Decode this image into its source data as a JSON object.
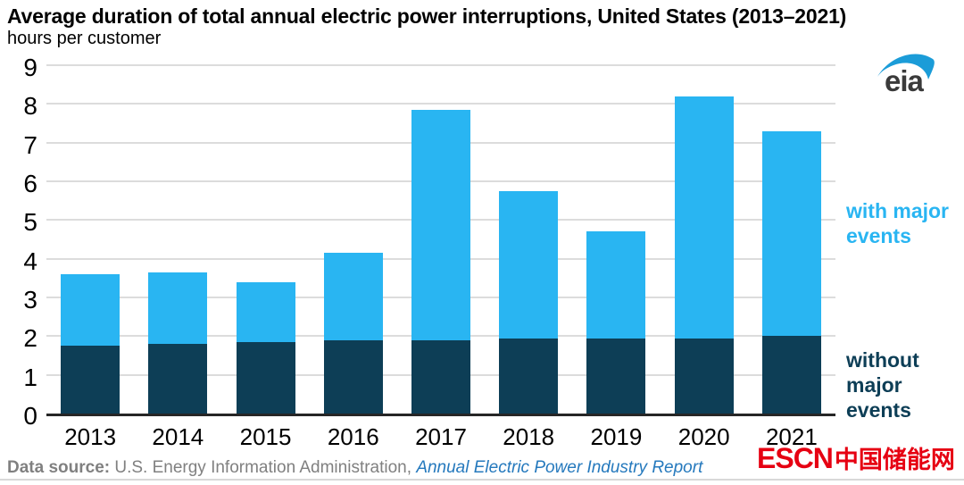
{
  "title": "Average duration of total annual electric power interruptions, United States (2013–2021)",
  "subtitle": "hours per customer",
  "legend": {
    "with_major": "with major events",
    "without_major": "without major events"
  },
  "colors": {
    "with_major": "#29B5F2",
    "without_major": "#0D3E56",
    "gridline": "#DCDCDC",
    "axis_line": "#262626",
    "source_gray": "#808080",
    "report_blue": "#2579BD",
    "escn_red": "#E60012",
    "eia_blue": "#1B9CD8",
    "eia_gray": "#3A3A3A"
  },
  "eia_logo_text": "eia",
  "source": {
    "label": "Data source: ",
    "text": "U.S. Energy Information Administration, ",
    "report": "Annual Electric Power Industry Report"
  },
  "watermark": {
    "latin": "ESCN",
    "chinese": "中国储能网"
  },
  "chart_data": {
    "type": "bar",
    "stacked": true,
    "title": "Average duration of total annual electric power interruptions, United States (2013–2021)",
    "ylabel": "hours per customer",
    "xlabel": "",
    "categories": [
      "2013",
      "2014",
      "2015",
      "2016",
      "2017",
      "2018",
      "2019",
      "2020",
      "2021"
    ],
    "series": [
      {
        "name": "without major events",
        "color": "#0D3E56",
        "values": [
          1.75,
          1.8,
          1.85,
          1.9,
          1.9,
          1.95,
          1.95,
          1.95,
          2.0
        ]
      },
      {
        "name": "with major events",
        "color": "#29B5F2",
        "values": [
          1.85,
          1.85,
          1.55,
          2.25,
          5.95,
          3.8,
          2.75,
          6.25,
          5.3
        ]
      }
    ],
    "totals": [
      3.6,
      3.65,
      3.4,
      4.15,
      7.85,
      5.75,
      4.7,
      8.2,
      7.3
    ],
    "ylim": [
      0,
      9
    ],
    "ytick_labels": [
      "0",
      "1",
      "2",
      "3",
      "4",
      "5",
      "6",
      "7",
      "8",
      "9"
    ],
    "grid": true,
    "legend_position": "right"
  }
}
